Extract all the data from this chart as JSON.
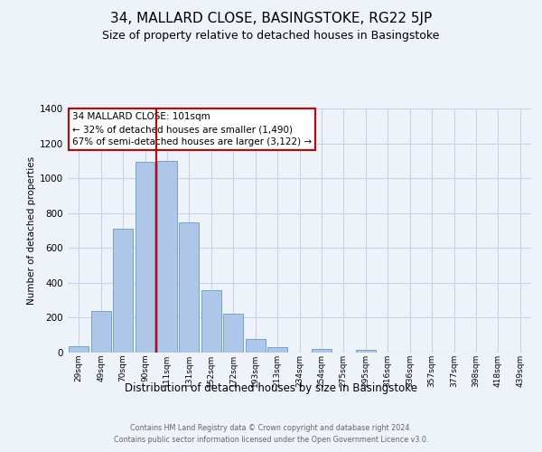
{
  "title1": "34, MALLARD CLOSE, BASINGSTOKE, RG22 5JP",
  "title2": "Size of property relative to detached houses in Basingstoke",
  "xlabel": "Distribution of detached houses by size in Basingstoke",
  "ylabel": "Number of detached properties",
  "bar_labels": [
    "29sqm",
    "49sqm",
    "70sqm",
    "90sqm",
    "111sqm",
    "131sqm",
    "152sqm",
    "172sqm",
    "193sqm",
    "213sqm",
    "234sqm",
    "254sqm",
    "275sqm",
    "295sqm",
    "316sqm",
    "336sqm",
    "357sqm",
    "377sqm",
    "398sqm",
    "418sqm",
    "439sqm"
  ],
  "bar_values": [
    35,
    240,
    710,
    1095,
    1100,
    745,
    360,
    225,
    80,
    30,
    0,
    20,
    0,
    15,
    0,
    0,
    0,
    0,
    0,
    0,
    0
  ],
  "bar_color": "#aec6e8",
  "bar_edge_color": "#6699cc",
  "ylim": [
    0,
    1400
  ],
  "yticks": [
    0,
    200,
    400,
    600,
    800,
    1000,
    1200,
    1400
  ],
  "annotation_title": "34 MALLARD CLOSE: 101sqm",
  "annotation_line1": "← 32% of detached houses are smaller (1,490)",
  "annotation_line2": "67% of semi-detached houses are larger (3,122) →",
  "footer1": "Contains HM Land Registry data © Crown copyright and database right 2024.",
  "footer2": "Contains public sector information licensed under the Open Government Licence v3.0.",
  "bg_color": "#eef2f9",
  "plot_bg_color": "#eef2f9",
  "grid_color": "#c8d4e8",
  "annotation_box_edge": "#cc0000",
  "property_line_color": "#cc0000",
  "title1_fontsize": 11,
  "title2_fontsize": 9
}
